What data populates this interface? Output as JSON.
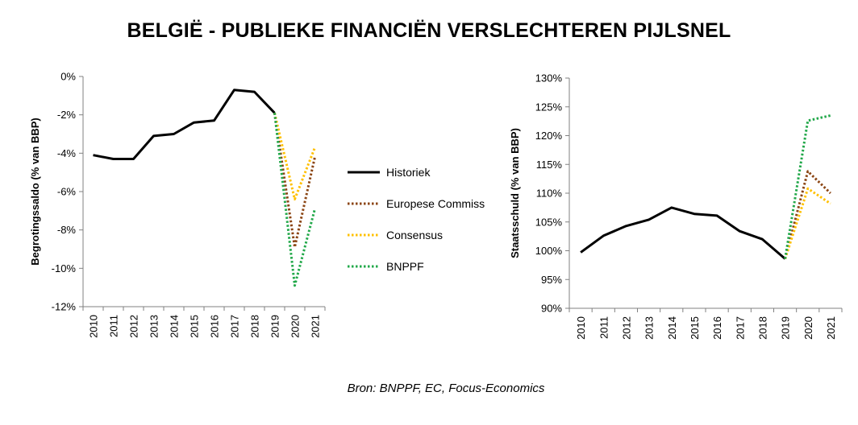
{
  "title": "BELGIË - PUBLIEKE FINANCIËN VERSLECHTEREN PIJLSNEL",
  "source": "Bron: BNPPF, EC, Focus-Economics",
  "colors": {
    "historiek": "#000000",
    "europese_commissie": "#8B4513",
    "consensus": "#FFC000",
    "bnppf": "#22A84A"
  },
  "legend": [
    {
      "label": "Historiek",
      "style": "solid",
      "color": "#000000"
    },
    {
      "label": "Europese Commiss",
      "style": "dotted",
      "color": "#8B4513"
    },
    {
      "label": "Consensus",
      "style": "dotted",
      "color": "#FFC000"
    },
    {
      "label": "BNPPF",
      "style": "dotted",
      "color": "#22A84A"
    }
  ],
  "chart_data": [
    {
      "type": "line",
      "ylabel": "Begrotingssaldo (% van BBP)",
      "xlabel": "",
      "ylim": [
        -12,
        0
      ],
      "yticks": [
        0,
        -2,
        -4,
        -6,
        -8,
        -10,
        -12
      ],
      "ytick_labels": [
        "0%",
        "-2%",
        "-4%",
        "-6%",
        "-8%",
        "-10%",
        "-12%"
      ],
      "x": [
        "2010",
        "2011",
        "2012",
        "2013",
        "2014",
        "2015",
        "2016",
        "2017",
        "2018",
        "2019",
        "2020",
        "2021"
      ],
      "series": [
        {
          "name": "Historiek",
          "style": "solid",
          "values": [
            -4.1,
            -4.3,
            -4.3,
            -3.1,
            -3.0,
            -2.4,
            -2.3,
            -0.7,
            -0.8,
            -1.9,
            null,
            null
          ]
        },
        {
          "name": "Europese Commiss",
          "style": "dotted",
          "values": [
            null,
            null,
            null,
            null,
            null,
            null,
            null,
            null,
            null,
            -1.9,
            -8.9,
            -4.2
          ]
        },
        {
          "name": "Consensus",
          "style": "dotted",
          "values": [
            null,
            null,
            null,
            null,
            null,
            null,
            null,
            null,
            null,
            -1.9,
            -6.4,
            -3.7
          ]
        },
        {
          "name": "BNPPF",
          "style": "dotted",
          "values": [
            null,
            null,
            null,
            null,
            null,
            null,
            null,
            null,
            null,
            -1.9,
            -10.9,
            -6.9
          ]
        }
      ]
    },
    {
      "type": "line",
      "ylabel": "Staatsschuld (% van BBP)",
      "xlabel": "",
      "ylim": [
        90,
        130
      ],
      "yticks": [
        130,
        125,
        120,
        115,
        110,
        105,
        100,
        95,
        90
      ],
      "ytick_labels": [
        "130%",
        "125%",
        "120%",
        "115%",
        "110%",
        "105%",
        "100%",
        "95%",
        "90%"
      ],
      "x": [
        "2010",
        "2011",
        "2012",
        "2013",
        "2014",
        "2015",
        "2016",
        "2017",
        "2018",
        "2019",
        "2020",
        "2021"
      ],
      "series": [
        {
          "name": "Historiek",
          "style": "solid",
          "values": [
            99.7,
            102.6,
            104.3,
            105.4,
            107.5,
            106.4,
            106.1,
            103.4,
            102.0,
            98.6,
            null,
            null
          ]
        },
        {
          "name": "Europese Commiss",
          "style": "dotted",
          "values": [
            null,
            null,
            null,
            null,
            null,
            null,
            null,
            null,
            null,
            98.6,
            113.8,
            110.0
          ]
        },
        {
          "name": "Consensus",
          "style": "dotted",
          "values": [
            null,
            null,
            null,
            null,
            null,
            null,
            null,
            null,
            null,
            98.6,
            110.8,
            108.2
          ]
        },
        {
          "name": "BNPPF",
          "style": "dotted",
          "values": [
            null,
            null,
            null,
            null,
            null,
            null,
            null,
            null,
            null,
            98.6,
            122.6,
            123.5
          ]
        }
      ]
    }
  ]
}
